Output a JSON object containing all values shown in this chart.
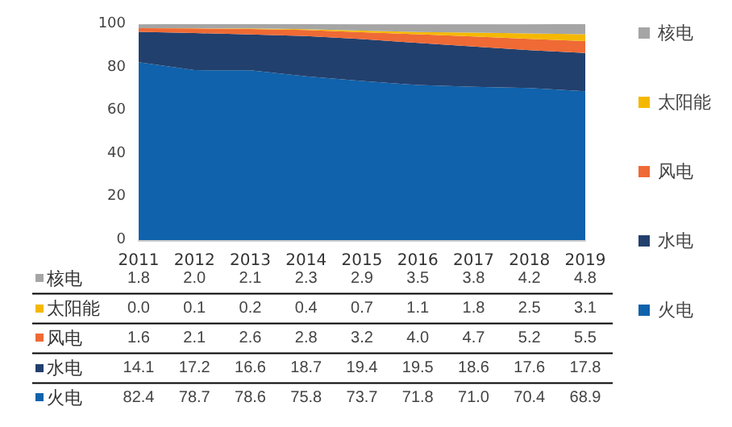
{
  "chart_data": {
    "type": "area",
    "stacked": true,
    "categories": [
      "2011",
      "2012",
      "2013",
      "2014",
      "2015",
      "2016",
      "2017",
      "2018",
      "2019"
    ],
    "series": [
      {
        "name": "火电",
        "color": "#0f62ab",
        "values": [
          82.4,
          78.7,
          78.6,
          75.8,
          73.7,
          71.8,
          71.0,
          70.4,
          68.9
        ],
        "value_labels": [
          "82.4",
          "78.7",
          "78.6",
          "75.8",
          "73.7",
          "71.8",
          "71.0",
          "70.4",
          "68.9"
        ]
      },
      {
        "name": "水电",
        "color": "#22406e",
        "values": [
          14.1,
          17.2,
          16.6,
          18.7,
          19.4,
          19.5,
          18.6,
          17.6,
          17.8
        ],
        "value_labels": [
          "14.1",
          "17.2",
          "16.6",
          "18.7",
          "19.4",
          "19.5",
          "18.6",
          "17.6",
          "17.8"
        ]
      },
      {
        "name": "风电",
        "color": "#ef6a35",
        "values": [
          1.6,
          2.1,
          2.6,
          2.8,
          3.2,
          4.0,
          4.7,
          5.2,
          5.5
        ],
        "value_labels": [
          "1.6",
          "2.1",
          "2.6",
          "2.8",
          "3.2",
          "4.0",
          "4.7",
          "5.2",
          "5.5"
        ]
      },
      {
        "name": "太阳能",
        "color": "#f5b800",
        "values": [
          0.0,
          0.1,
          0.2,
          0.4,
          0.7,
          1.1,
          1.8,
          2.5,
          3.1
        ],
        "value_labels": [
          "0.0",
          "0.1",
          "0.2",
          "0.4",
          "0.7",
          "1.1",
          "1.8",
          "2.5",
          "3.1"
        ]
      },
      {
        "name": "核电",
        "color": "#a5a5a5",
        "values": [
          1.8,
          2.0,
          2.1,
          2.3,
          2.9,
          3.5,
          3.8,
          4.2,
          4.8
        ],
        "value_labels": [
          "1.8",
          "2.0",
          "2.1",
          "2.3",
          "2.9",
          "3.5",
          "3.8",
          "4.2",
          "4.8"
        ]
      }
    ],
    "ylim": [
      0,
      100
    ],
    "yticks": [
      0,
      20,
      40,
      60,
      80,
      100
    ],
    "grid": "y",
    "legend": "right"
  }
}
